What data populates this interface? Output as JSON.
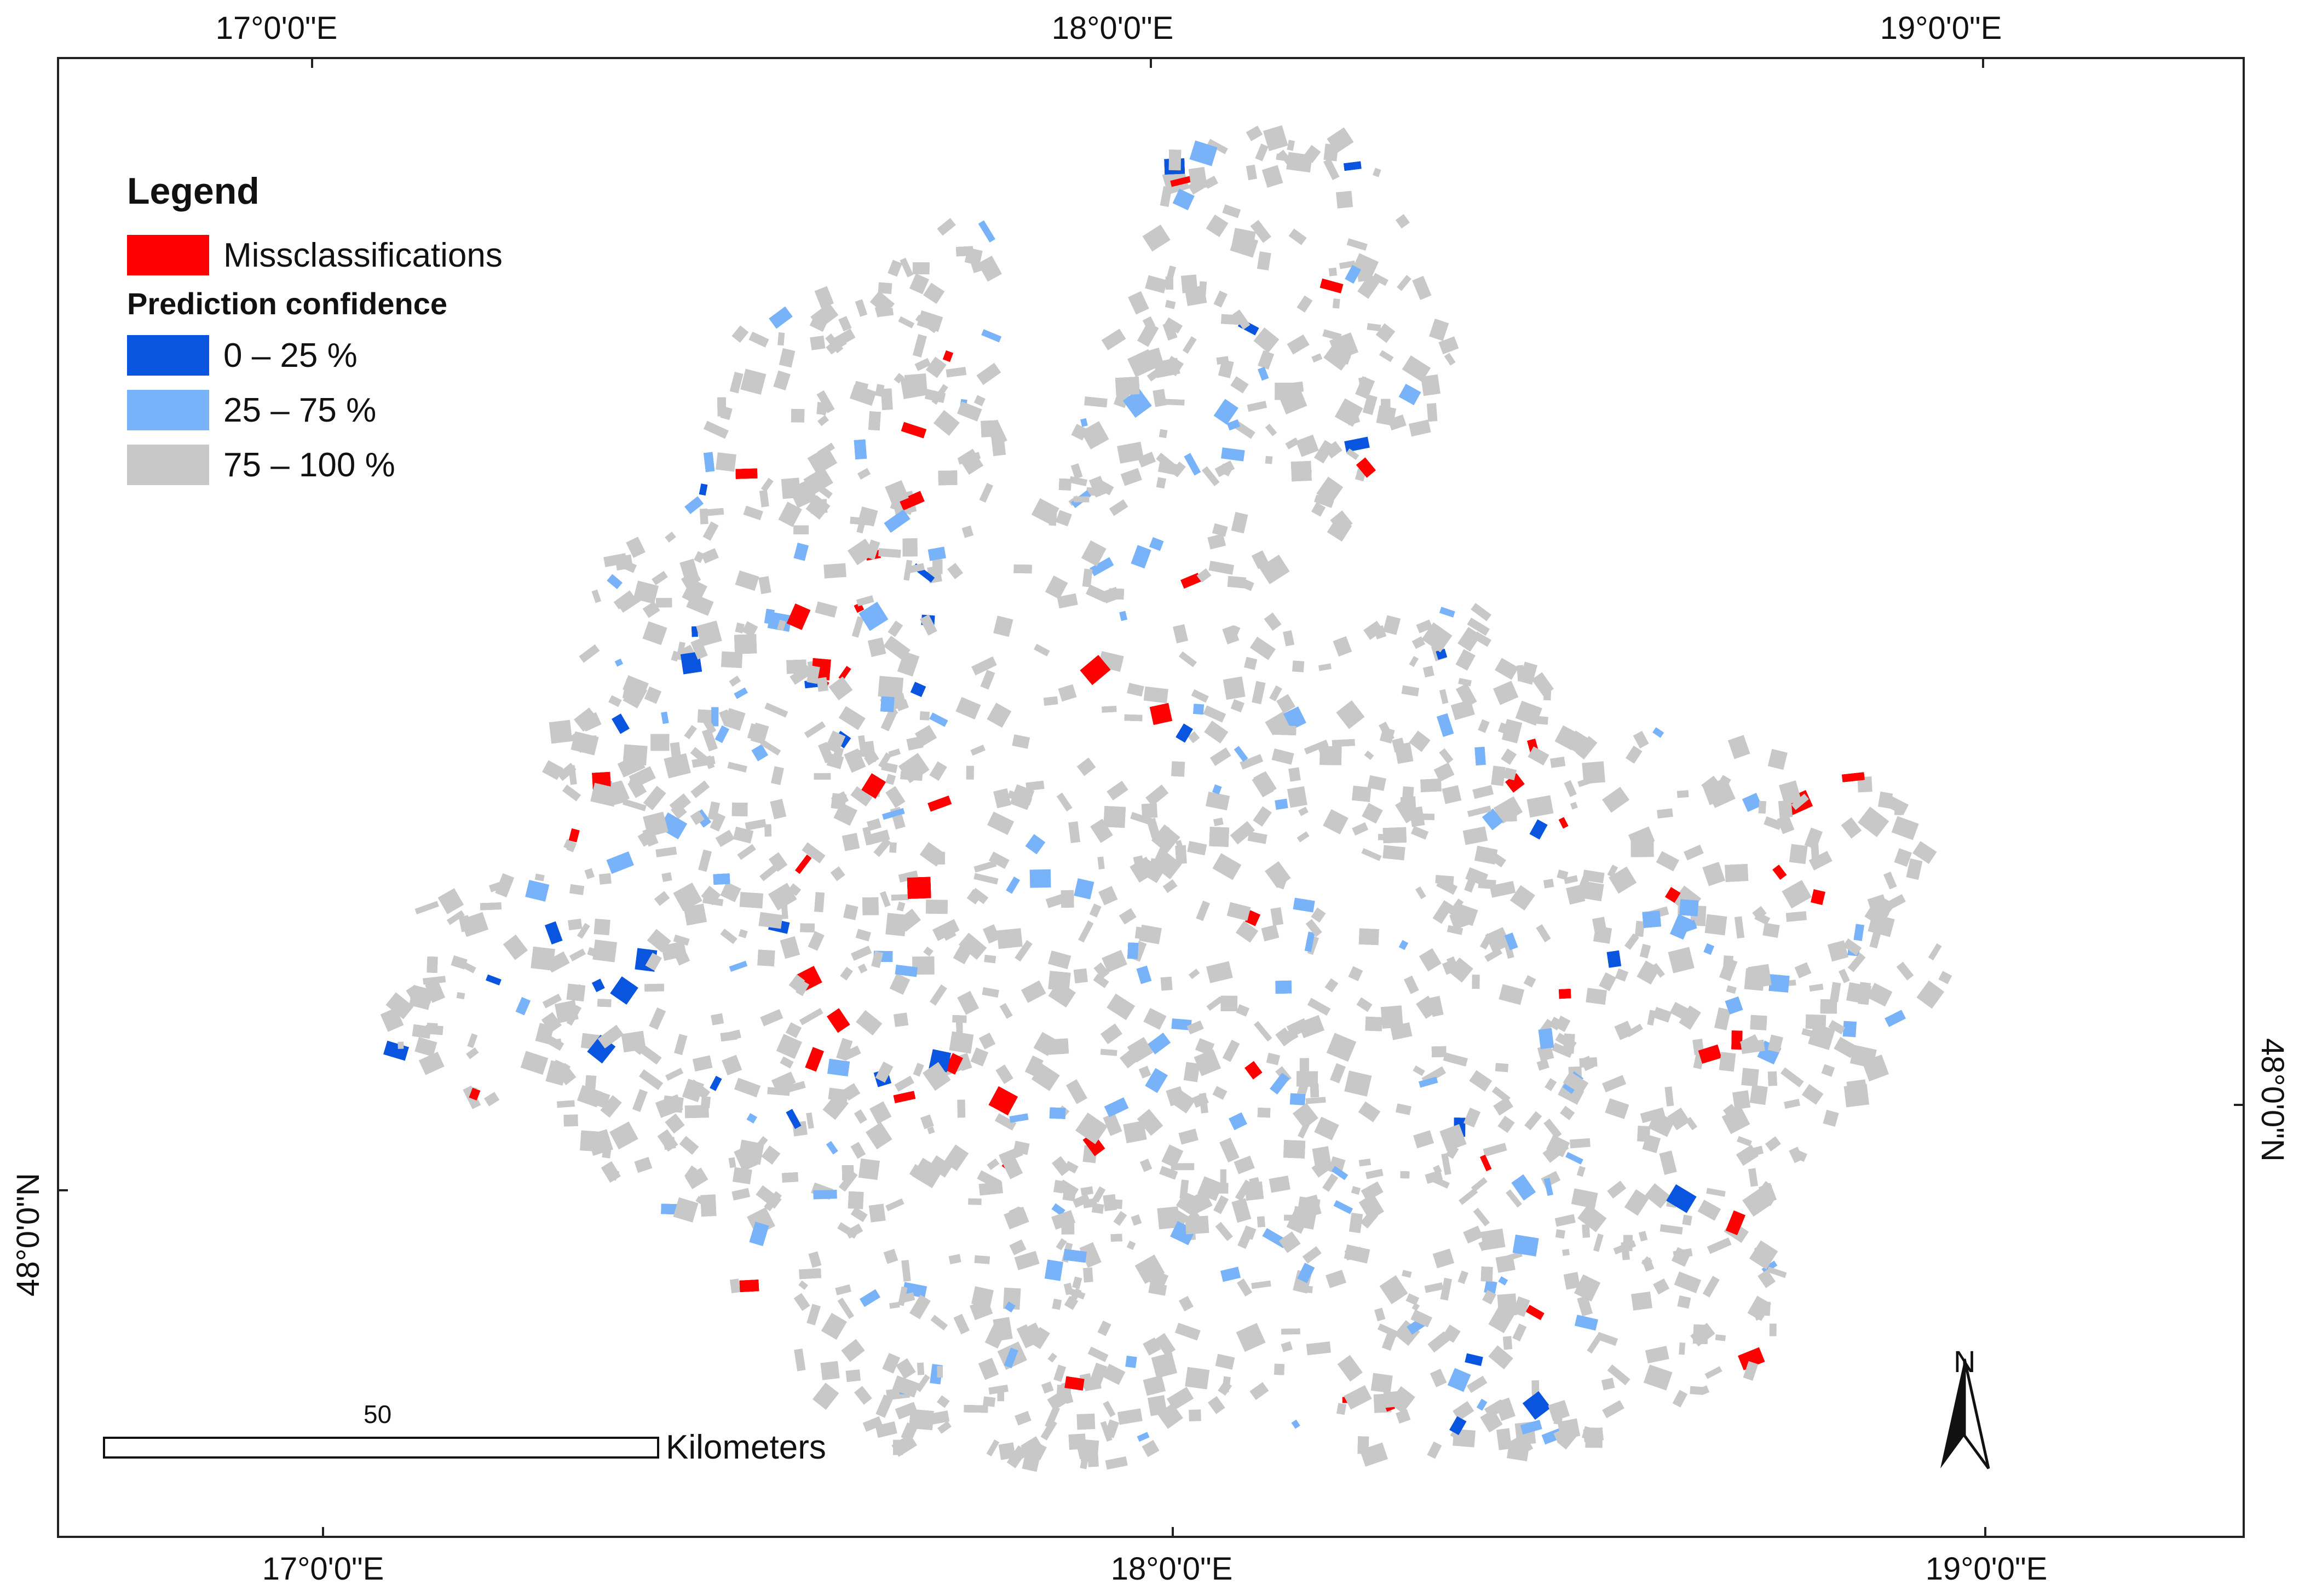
{
  "coordinates": {
    "top": [
      "17°0'0\"E",
      "18°0'0\"E",
      "19°0'0\"E"
    ],
    "bottom": [
      "17°0'0\"E",
      "18°0'0\"E",
      "19°0'0\"E"
    ],
    "left": "48°0'0\"N",
    "right": "48°0'0\"N"
  },
  "legend": {
    "title": "Legend",
    "misclass_label": "Missclassifications",
    "subtitle": "Prediction confidence",
    "classes": [
      {
        "label": "0 – 25 %",
        "color": "#0a55e0"
      },
      {
        "label": "25 – 75 %",
        "color": "#78b2f8"
      },
      {
        "label": "75 – 100 %",
        "color": "#c8c8c8"
      }
    ],
    "misclass_color": "#ff0000"
  },
  "scale": {
    "value": "50",
    "unit": "Kilometers"
  },
  "north_arrow": {
    "label": "N"
  }
}
